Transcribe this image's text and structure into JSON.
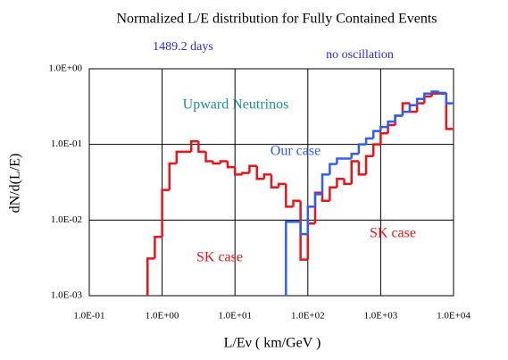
{
  "chart_data": {
    "type": "histogram",
    "title": "Normalized L/E distribution  for Fully Contained Events",
    "xlabel": "L/Eν ( km/GeV )",
    "ylabel": "dN/d(L/E)",
    "xscale": "log",
    "yscale": "log",
    "grid": true,
    "xlim": [
      0.1,
      10000
    ],
    "ylim": [
      0.001,
      1
    ],
    "xticks": [
      {
        "value": 0.1,
        "label": "1.0E-01"
      },
      {
        "value": 1,
        "label": "1.0E+00"
      },
      {
        "value": 10,
        "label": "1.0E+01"
      },
      {
        "value": 100,
        "label": "1.0E+02"
      },
      {
        "value": 1000,
        "label": "1.0E+03"
      },
      {
        "value": 10000,
        "label": "1.0E+04"
      }
    ],
    "yticks": [
      {
        "value": 0.001,
        "label": "1.0E-03"
      },
      {
        "value": 0.01,
        "label": "1.0E-02"
      },
      {
        "value": 0.1,
        "label": "1.0E-01"
      },
      {
        "value": 1,
        "label": "1.0E+00"
      }
    ],
    "bins": [
      0.631,
      0.794,
      1,
      1.26,
      1.58,
      2,
      2.51,
      3.16,
      3.98,
      5.01,
      6.31,
      7.94,
      10,
      12.6,
      15.8,
      20,
      25.1,
      31.6,
      39.8,
      50.1,
      63.1,
      79.4,
      100,
      126,
      158,
      200,
      251,
      316,
      398,
      501,
      631,
      794,
      1000,
      1260,
      1580,
      2000,
      2510,
      3160,
      3980,
      5010,
      6310,
      7940,
      10000
    ],
    "series": [
      {
        "name": "SK case",
        "color": "#e8141a",
        "values": [
          0.0031,
          0.006,
          0.025,
          0.056,
          0.08,
          0.08,
          0.11,
          0.08,
          0.06,
          0.056,
          0.06,
          0.05,
          0.04,
          0.042,
          0.052,
          0.035,
          0.04,
          0.027,
          0.03,
          0.015,
          0.018,
          0.003,
          0.009,
          0.023,
          0.018,
          0.027,
          0.035,
          0.03,
          0.06,
          0.04,
          0.07,
          0.1,
          0.14,
          0.18,
          0.24,
          0.35,
          0.27,
          0.35,
          0.43,
          0.47,
          0.47,
          0.16
        ]
      },
      {
        "name": "Our case",
        "color": "#2e5ff0",
        "values": [
          null,
          null,
          null,
          null,
          null,
          null,
          null,
          null,
          null,
          null,
          null,
          null,
          null,
          null,
          null,
          null,
          null,
          null,
          null,
          0.0095,
          0.0095,
          0.0065,
          0.015,
          0.022,
          0.04,
          0.055,
          0.065,
          0.065,
          0.075,
          0.1,
          0.12,
          0.15,
          0.17,
          0.2,
          0.24,
          0.27,
          0.33,
          0.4,
          0.47,
          0.5,
          0.48,
          0.35
        ]
      }
    ],
    "annotations": [
      {
        "text": "1489.2 days",
        "color": "#2a2ae0"
      },
      {
        "text": "no oscillation",
        "color": "#2a2ae0"
      },
      {
        "text": "Upward Neutrinos",
        "color": "#1f8f8f"
      },
      {
        "text": "SK case",
        "color": "#e8141a"
      }
    ]
  }
}
